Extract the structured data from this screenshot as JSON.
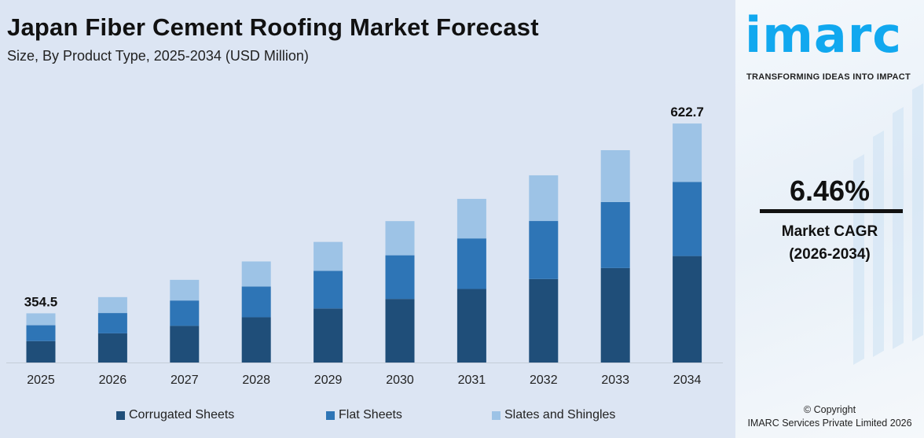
{
  "title": "Japan Fiber Cement Roofing Market Forecast",
  "subtitle": "Size, By Product Type, 2025-2034 (USD Million)",
  "chart_data": {
    "type": "bar",
    "stacked": true,
    "categories": [
      "2025",
      "2026",
      "2027",
      "2028",
      "2029",
      "2030",
      "2031",
      "2032",
      "2033",
      "2034"
    ],
    "series": [
      {
        "name": "Corrugated Sheets",
        "color": "#1f4e79",
        "values": [
          154.3,
          168.3,
          178.1,
          191.5,
          204.0,
          218.0,
          232.0,
          245.1,
          260.3,
          277.4
        ]
      },
      {
        "name": "Flat Sheets",
        "color": "#2e75b6",
        "values": [
          114.5,
          117.3,
          123.3,
          130.4,
          142.1,
          149.7,
          159.5,
          170.3,
          181.9,
          193.2
        ]
      },
      {
        "name": "Slates and Shingles",
        "color": "#9dc3e6",
        "values": [
          85.7,
          91.8,
          100.4,
          105.9,
          109.3,
          117.1,
          124.7,
          134.1,
          142.8,
          152.1
        ]
      }
    ],
    "data_labels": {
      "2025": "354.5",
      "2034": "622.7"
    },
    "legend_position": "bottom",
    "grid": false,
    "xlabel": "",
    "ylabel": ""
  },
  "side": {
    "logo": "imarc",
    "tagline": "TRANSFORMING IDEAS INTO IMPACT",
    "cagr_value": "6.46%",
    "cagr_label": "Market CAGR",
    "cagr_period": "(2026-2034)",
    "copyright": "© Copyright",
    "company": "IMARC Services Private Limited 2026"
  }
}
